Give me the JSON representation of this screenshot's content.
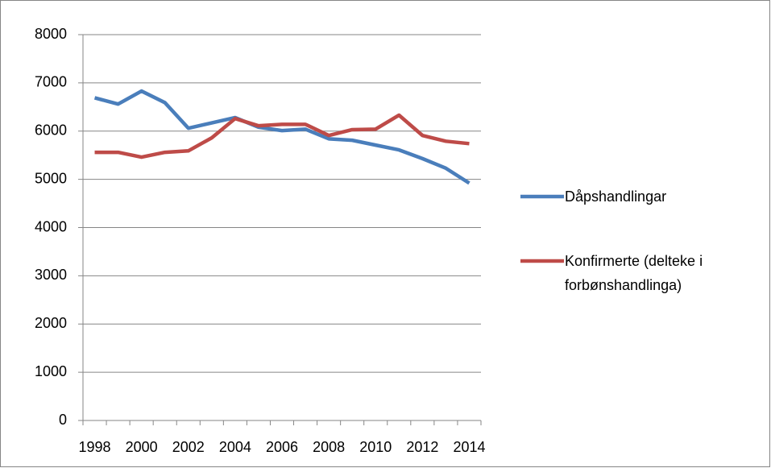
{
  "chart_data": {
    "type": "line",
    "categories": [
      "1998",
      null,
      "2000",
      null,
      "2002",
      null,
      "2004",
      null,
      "2006",
      null,
      "2008",
      null,
      "2010",
      null,
      "2012",
      null,
      "2014"
    ],
    "series": [
      {
        "name": "Dåpshandlingar",
        "color": "#4a7ebb",
        "values": [
          6690,
          6560,
          6830,
          6590,
          6060,
          6170,
          6280,
          6080,
          6010,
          6040,
          5840,
          5810,
          5710,
          5610,
          5430,
          5230,
          4920
        ]
      },
      {
        "name": "Konfirmerte (delteke i forbønshandlinga)",
        "color": "#be4b48",
        "values": [
          5560,
          5560,
          5460,
          5560,
          5590,
          5860,
          6260,
          6110,
          6140,
          6140,
          5910,
          6030,
          6040,
          6330,
          5910,
          5790,
          5740
        ]
      }
    ],
    "ylim": [
      0,
      8000
    ],
    "yticks": [
      0,
      1000,
      2000,
      3000,
      4000,
      5000,
      6000,
      7000,
      8000
    ],
    "grid": true,
    "legend": "right"
  }
}
